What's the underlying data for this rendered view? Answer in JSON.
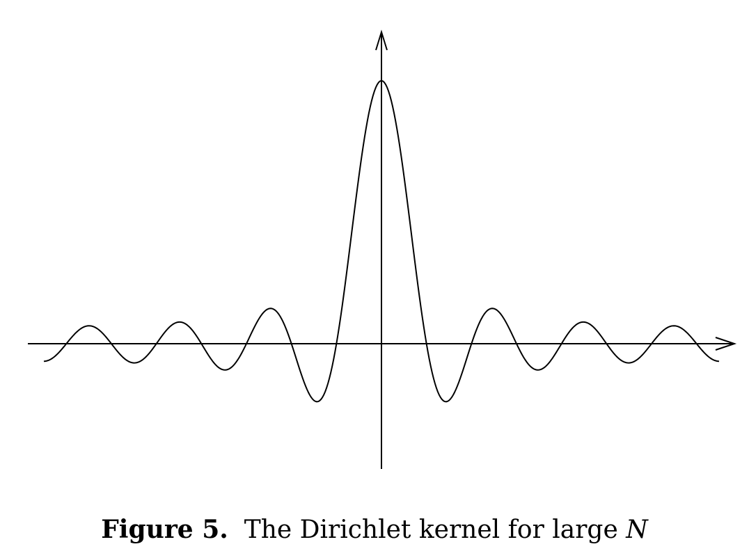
{
  "caption": {
    "label": "Figure 5.",
    "text": "The Dirichlet kernel for large",
    "variable": "N"
  },
  "chart_data": {
    "type": "line",
    "title": "",
    "xlabel": "",
    "ylabel": "",
    "grid": false,
    "legend": "none",
    "axes": "centered at origin, with arrowheads on positive ends, no ticks or tick labels",
    "function": "D_N(x) = sin((N + 1/2) x) / sin(x / 2)",
    "N": 7,
    "xlim": [
      -3.1416,
      3.1416
    ],
    "ylim": [
      -5.5,
      15.0
    ],
    "samples": 481,
    "line_color": "#000000",
    "axis_color": "#000000"
  }
}
